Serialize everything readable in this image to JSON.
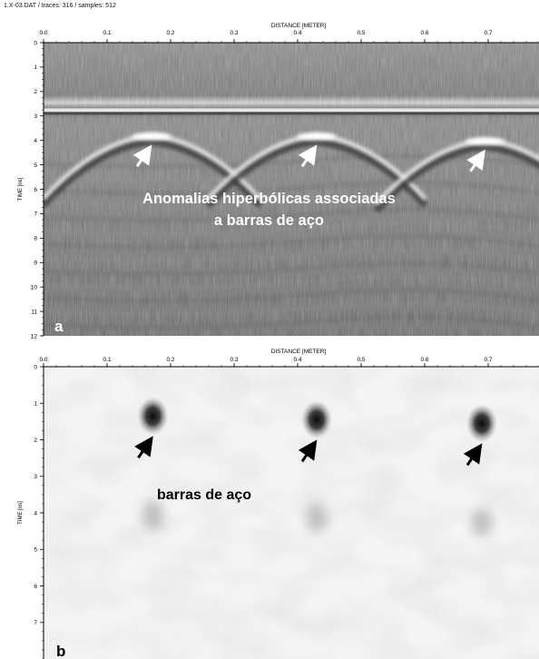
{
  "header": {
    "file_info": "1.X-03.DAT / traces: 316 / samples: 512"
  },
  "chart_data": [
    {
      "type": "heatmap",
      "panel_letter": "a",
      "xlabel": "DISTANCE [METER]",
      "ylabel": "TIME [ns]",
      "xlim": [
        0.0,
        0.78
      ],
      "ylim": [
        0,
        12
      ],
      "x_ticks": [
        "0.0",
        "0.1",
        "0.2",
        "0.3",
        "0.4",
        "0.5",
        "0.6",
        "0.7"
      ],
      "y_ticks": [
        "0",
        "1",
        "2",
        "3",
        "4",
        "5",
        "6",
        "7",
        "8",
        "9",
        "10",
        "11",
        "12"
      ],
      "direct_wave_time_ns": 2.8,
      "anomalies": [
        {
          "label": "hyperbola",
          "x_m": 0.17,
          "apex_time_ns": 3.8,
          "arrow_color": "white"
        },
        {
          "label": "hyperbola",
          "x_m": 0.43,
          "apex_time_ns": 3.8,
          "arrow_color": "white"
        },
        {
          "label": "hyperbola",
          "x_m": 0.695,
          "apex_time_ns": 4.0,
          "arrow_color": "white"
        }
      ],
      "annotation_lines": [
        "Anomalias hiperbólicas associadas",
        "a barras de aço"
      ],
      "colormap": "grayscale"
    },
    {
      "type": "heatmap",
      "panel_letter": "b",
      "xlabel": "DISTANCE [METER]",
      "ylabel": "TIME [ns]",
      "xlim": [
        0.0,
        0.78
      ],
      "ylim": [
        0,
        8
      ],
      "x_ticks": [
        "0.0",
        "0.1",
        "0.2",
        "0.3",
        "0.4",
        "0.5",
        "0.6",
        "0.7"
      ],
      "y_ticks": [
        "0",
        "1",
        "2",
        "3",
        "4",
        "5",
        "6",
        "7"
      ],
      "anomalies": [
        {
          "label": "dark spot",
          "x_m": 0.172,
          "time_ns": 1.35,
          "arrow_color": "black"
        },
        {
          "label": "dark spot",
          "x_m": 0.43,
          "time_ns": 1.45,
          "arrow_color": "black"
        },
        {
          "label": "dark spot",
          "x_m": 0.69,
          "time_ns": 1.55,
          "arrow_color": "black"
        }
      ],
      "annotation_lines": [
        "barras de aço"
      ],
      "colormap": "grayscale-inverted"
    }
  ]
}
